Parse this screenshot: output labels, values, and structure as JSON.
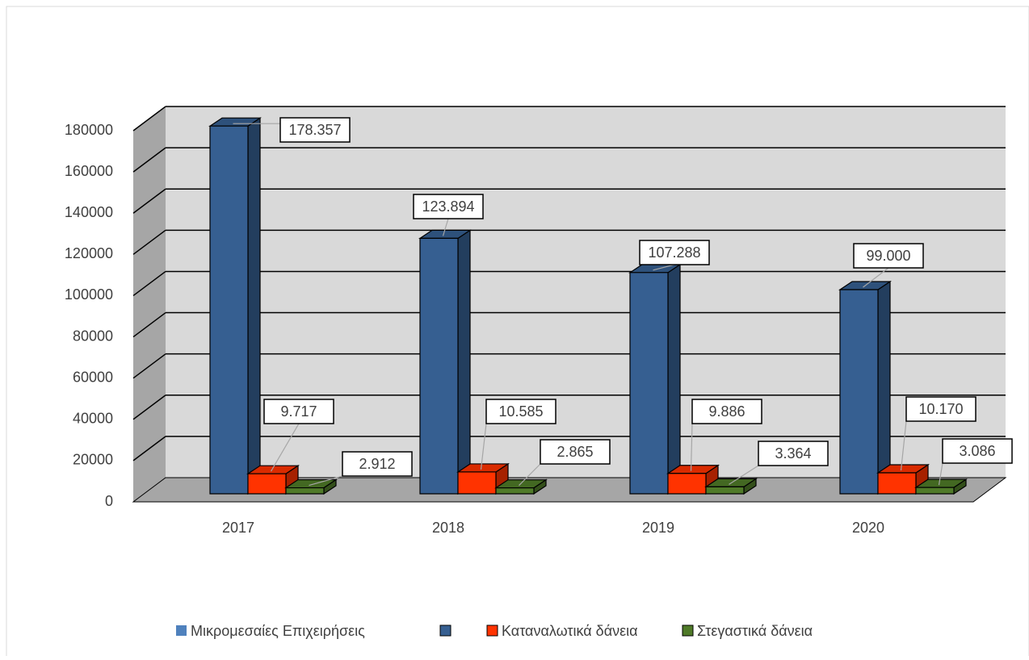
{
  "chart_data": {
    "type": "bar3d",
    "categories": [
      "2017",
      "2018",
      "2019",
      "2020"
    ],
    "series": [
      {
        "name": "Μικρομεσαίες Επιχειρήσεις",
        "color": "#365f91",
        "values": [
          178357,
          123894,
          107288,
          99000
        ],
        "value_labels": [
          "178.357",
          "123.894",
          "107.288",
          "99.000"
        ]
      },
      {
        "name": "Καταναλωτικά δάνεια",
        "color": "#ff3300",
        "values": [
          9717,
          10585,
          9886,
          10170
        ],
        "value_labels": [
          "9.717",
          "10.585",
          "9.886",
          "10.170"
        ]
      },
      {
        "name": "Στεγαστικά δάνεια",
        "color": "#4f7a28",
        "values": [
          2912,
          2865,
          3364,
          3086
        ],
        "value_labels": [
          "2.912",
          "2.865",
          "3.364",
          "3.086"
        ]
      }
    ],
    "ylim": [
      0,
      180000
    ],
    "yticks": [
      0,
      20000,
      40000,
      60000,
      80000,
      100000,
      120000,
      140000,
      160000,
      180000
    ],
    "grid": true
  }
}
